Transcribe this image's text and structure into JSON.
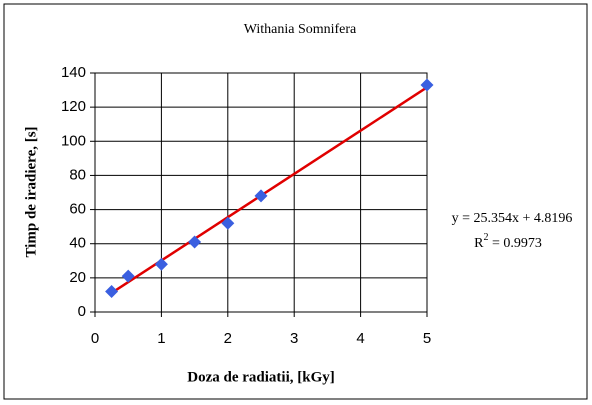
{
  "chart_data": {
    "type": "scatter",
    "title": "Withania Somnifera",
    "xlabel": "Doza de radiatii, [kGy]",
    "ylabel": "Timp de iradiere, [s]",
    "series": [
      {
        "name": "Withania Somnifera",
        "color": "#3a5fe0",
        "x": [
          0.25,
          0.5,
          1,
          1.5,
          2,
          2.5,
          5
        ],
        "values": [
          12,
          21,
          28,
          41,
          52,
          68,
          133
        ]
      }
    ],
    "trendline": {
      "color": "#e00000",
      "slope": 25.354,
      "intercept": 4.8196,
      "xrange": [
        0.25,
        5
      ],
      "equation_label": "y = 25.354x + 4.8196",
      "r2_label": [
        "R",
        "2",
        " = 0.9973"
      ]
    },
    "xlim": [
      0,
      5
    ],
    "xticks": [
      0,
      1,
      2,
      3,
      4,
      5
    ],
    "ylim": [
      0,
      140
    ],
    "yticks": [
      0,
      20,
      40,
      60,
      80,
      100,
      120,
      140
    ],
    "grid": true
  }
}
